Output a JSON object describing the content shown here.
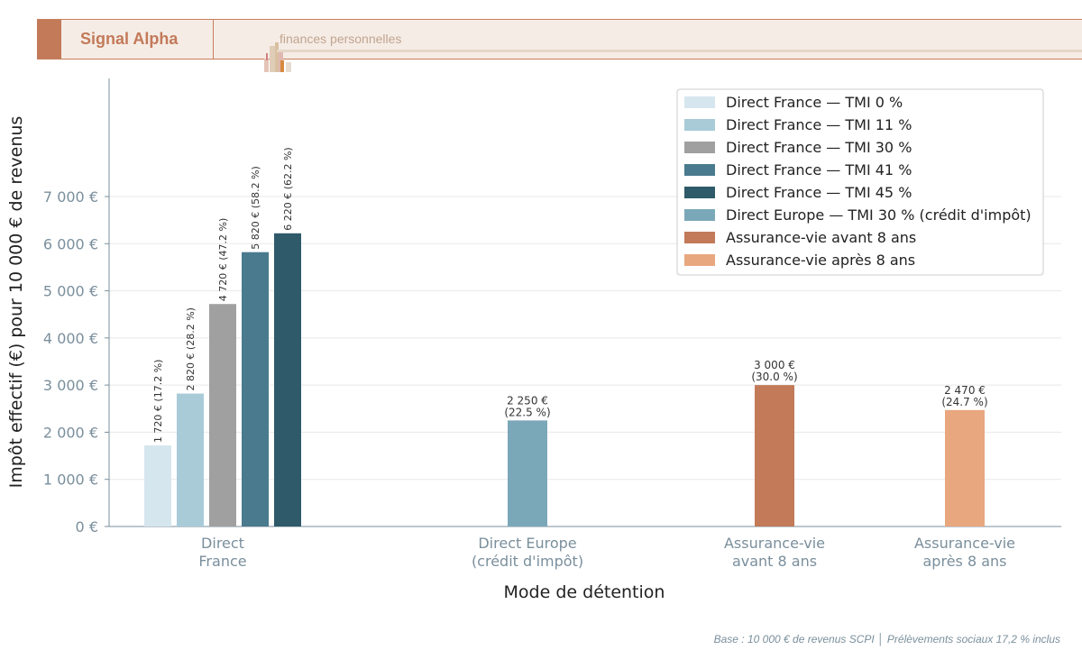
{
  "header": {
    "brand": "Signal Alpha",
    "subtitle": "finances personnelles"
  },
  "footer": "Base : 10 000 € de revenus SCPI  │  Prélèvements sociaux 17,2 % inclus",
  "chart_data": {
    "type": "bar",
    "xlabel": "Mode de détention",
    "ylabel": "Impôt effectif (€) pour 10 000 € de revenus",
    "ylim": [
      0,
      9500
    ],
    "yticks": [
      0,
      1000,
      2000,
      3000,
      4000,
      5000,
      6000,
      7000
    ],
    "ytick_labels": [
      "0 €",
      "1 000 €",
      "2 000 €",
      "3 000 €",
      "4 000 €",
      "5 000 €",
      "6 000 €",
      "7 000 €"
    ],
    "grid": true,
    "legend_position": "top-right",
    "categories": [
      [
        "Direct",
        "France"
      ],
      [
        "Direct Europe",
        "(crédit d'impôt)"
      ],
      [
        "Assurance-vie",
        "avant 8 ans"
      ],
      [
        "Assurance-vie",
        "après 8 ans"
      ]
    ],
    "series": [
      {
        "name": "Direct France — TMI 0 %",
        "category": 0,
        "value": 1720,
        "label": "1 720 €  (17.2 %)",
        "color": "#d6e6ee"
      },
      {
        "name": "Direct France — TMI 11 %",
        "category": 0,
        "value": 2820,
        "label": "2 820 €  (28.2 %)",
        "color": "#a8cbd7"
      },
      {
        "name": "Direct France — TMI 30 %",
        "category": 0,
        "value": 4720,
        "label": "4 720 €  (47.2 %)",
        "color": "#a0a0a0"
      },
      {
        "name": "Direct France — TMI 41 %",
        "category": 0,
        "value": 5820,
        "label": "5 820 €  (58.2 %)",
        "color": "#4a7a8e"
      },
      {
        "name": "Direct France — TMI 45 %",
        "category": 0,
        "value": 6220,
        "label": "6 220 €  (62.2 %)",
        "color": "#2e5a6a"
      },
      {
        "name": "Direct Europe — TMI 30 % (crédit d'impôt)",
        "category": 1,
        "value": 2250,
        "label": [
          "2 250 €",
          "(22.5 %)"
        ],
        "color": "#7ba8b9"
      },
      {
        "name": "Assurance-vie avant 8 ans",
        "category": 2,
        "value": 3000,
        "label": [
          "3 000 €",
          "(30.0 %)"
        ],
        "color": "#c27a59"
      },
      {
        "name": "Assurance-vie après 8 ans",
        "category": 3,
        "value": 2470,
        "label": [
          "2 470 €",
          "(24.7 %)"
        ],
        "color": "#e8a77e"
      }
    ]
  }
}
